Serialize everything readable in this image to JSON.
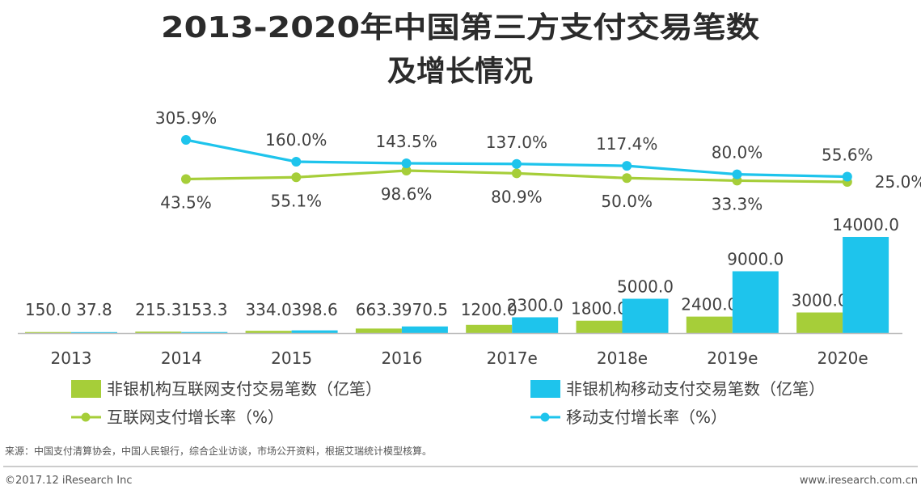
{
  "colors": {
    "green": "#a6ce39",
    "blue": "#1ec4ec",
    "text": "#404040",
    "title": "#2b2b2b"
  },
  "chart_data": {
    "type": "bar+line",
    "title_line1": "2013-2020年中国第三方支付交易笔数",
    "title_line2": "及增长情况",
    "categories": [
      "2013",
      "2014",
      "2015",
      "2016",
      "2017e",
      "2018e",
      "2019e",
      "2020e"
    ],
    "bar_series": [
      {
        "name": "非银机构互联网支付交易笔数（亿笔）",
        "color": "#a6ce39",
        "values": [
          150.0,
          215.3,
          334.0,
          663.3,
          1200.0,
          1800.0,
          2400.0,
          3000.0
        ],
        "labels": [
          "150.0",
          "215.3",
          "334.0",
          "663.3",
          "1200.0",
          "1800.0",
          "2400.0",
          "3000.0"
        ]
      },
      {
        "name": "非银机构移动支付交易笔数（亿笔）",
        "color": "#1ec4ec",
        "values": [
          37.8,
          153.3,
          398.6,
          970.5,
          2300.0,
          5000.0,
          9000.0,
          14000.0
        ],
        "labels": [
          "37.8",
          "153.3",
          "398.6",
          "970.5",
          "2300.0",
          "5000.0",
          "9000.0",
          "14000.0"
        ]
      }
    ],
    "line_series": [
      {
        "name": "互联网支付增长率（%）",
        "color": "#a6ce39",
        "values": [
          43.5,
          55.1,
          98.6,
          80.9,
          50.0,
          33.3,
          25.0
        ],
        "labels": [
          "43.5%",
          "55.1%",
          "98.6%",
          "80.9%",
          "50.0%",
          "33.3%",
          "25.0%"
        ],
        "categories": [
          "2014",
          "2015",
          "2016",
          "2017e",
          "2018e",
          "2019e",
          "2020e"
        ]
      },
      {
        "name": "移动支付增长率（%）",
        "color": "#1ec4ec",
        "values": [
          305.9,
          160.0,
          143.5,
          137.0,
          117.4,
          80.0,
          55.6
        ],
        "labels": [
          "305.9%",
          "160.0%",
          "143.5%",
          "137.0%",
          "117.4%",
          "80.0%",
          "55.6%"
        ],
        "categories": [
          "2014",
          "2015",
          "2016",
          "2017e",
          "2018e",
          "2019e",
          "2020e"
        ]
      }
    ],
    "bar_ylim": [
      0,
      14000
    ]
  },
  "legend": {
    "bar_internet": "非银机构互联网支付交易笔数（亿笔）",
    "bar_mobile": "非银机构移动支付交易笔数（亿笔）",
    "line_internet": "互联网支付增长率（%）",
    "line_mobile": "移动支付增长率（%）"
  },
  "footer": {
    "source": "来源：中国支付清算协会，中国人民银行，综合企业访谈，市场公开资料，根据艾瑞统计模型核算。",
    "copyright": "©2017.12 iResearch Inc",
    "website": "www.iresearch.com.cn"
  }
}
